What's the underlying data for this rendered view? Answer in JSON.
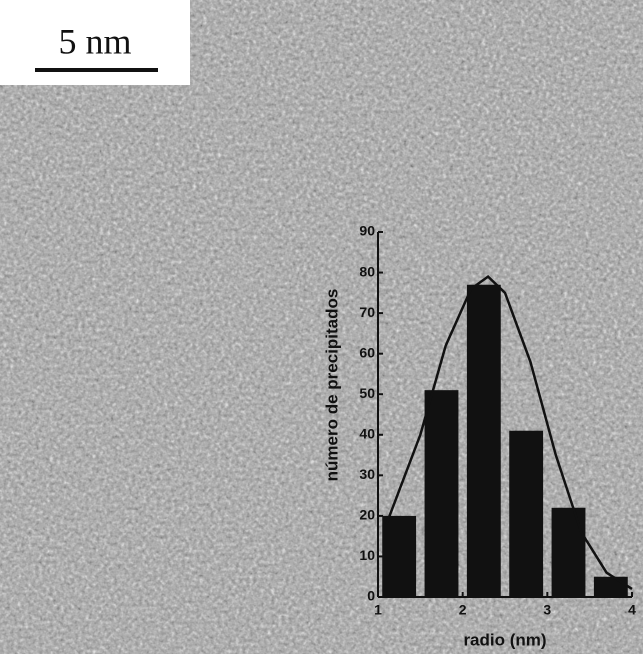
{
  "image": {
    "scale_bar": "5 nm"
  },
  "chart_data": {
    "type": "histogram",
    "x_label": "radio (nm)",
    "y_label": "número de precipitados",
    "bins": [
      1.0,
      1.5,
      2.0,
      2.5,
      3.0,
      3.5,
      4.0
    ],
    "values": [
      20,
      51,
      77,
      41,
      22,
      5
    ],
    "color": "#111111",
    "curve": {
      "x": [
        1.1,
        1.5,
        1.8,
        2.1,
        2.3,
        2.5,
        2.8,
        3.1,
        3.4,
        3.7,
        4.0
      ],
      "values": [
        18,
        40,
        62,
        76,
        79,
        75,
        58,
        35,
        16,
        6,
        2
      ]
    },
    "xlim": [
      1,
      4
    ],
    "xticks": [
      1,
      2,
      3,
      4
    ],
    "ylim": [
      0,
      90
    ],
    "yticks": [
      0,
      10,
      20,
      30,
      40,
      50,
      60,
      70,
      80,
      90
    ]
  }
}
